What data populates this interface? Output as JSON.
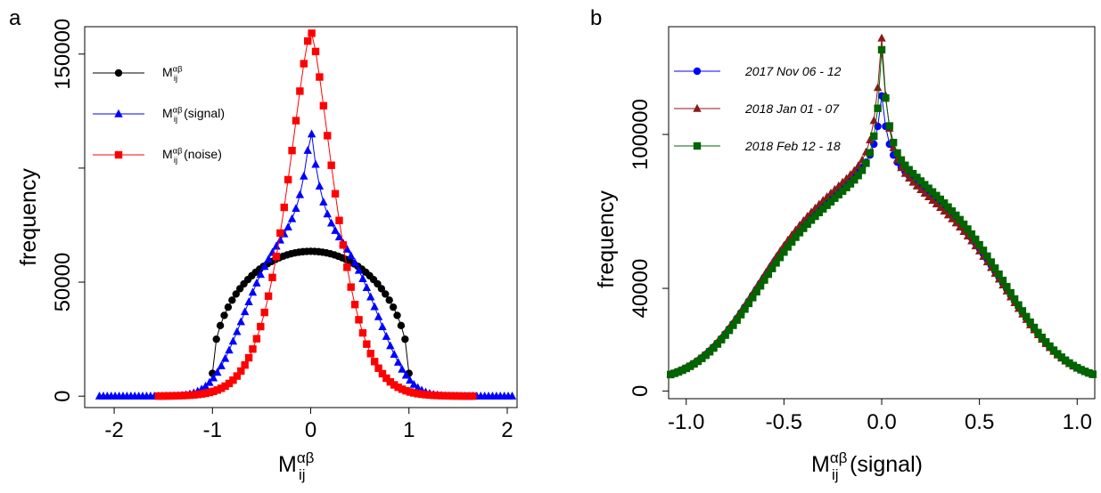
{
  "chart_data": [
    {
      "panel": "a",
      "type": "line",
      "xlabel": "M",
      "xlabel_sub": "ij",
      "xlabel_sup": "αβ",
      "ylabel": "frequency",
      "xlim": [
        -2.3,
        2.1
      ],
      "ylim": [
        -5000,
        162000
      ],
      "xticks": [
        -2,
        -1,
        0,
        1,
        2
      ],
      "xtick_labels": [
        "-2",
        "-1",
        "0",
        "1",
        "2"
      ],
      "yticks": [
        0,
        50000,
        100000,
        150000
      ],
      "ytick_labels": [
        "0",
        "50000",
        "",
        "150000"
      ],
      "legend_position": "top-left",
      "legend": [
        {
          "main": "M",
          "sub": "ij",
          "sup": "αβ",
          "suffix": ""
        },
        {
          "main": "M",
          "sub": "ij",
          "sup": "αβ",
          "suffix": "(signal)"
        },
        {
          "main": "M",
          "sub": "ij",
          "sup": "αβ",
          "suffix": "(noise)"
        }
      ],
      "series": [
        {
          "color": "#000000",
          "marker": "circle",
          "shape": "semicircle",
          "range": [
            -1.0,
            1.0
          ],
          "peak": 63500,
          "edge": 10000,
          "step": 0.04
        },
        {
          "color": "#0000ff",
          "marker": "triangle",
          "shape": "signal",
          "range": [
            -2.15,
            2.05
          ],
          "peak": 119000,
          "step": 0.04
        },
        {
          "color": "#ff0000",
          "marker": "square",
          "shape": "noise",
          "range": [
            -1.55,
            1.65
          ],
          "peak": 160000,
          "step": 0.04
        }
      ]
    },
    {
      "panel": "b",
      "type": "line",
      "xlabel": "M",
      "xlabel_sub": "ij",
      "xlabel_sup": "αβ",
      "xlabel_suffix": "(signal)",
      "ylabel": "frequency",
      "xlim": [
        -1.09,
        1.09
      ],
      "ylim": [
        -3000,
        142000
      ],
      "xticks": [
        -1.0,
        -0.5,
        0.0,
        0.5,
        1.0
      ],
      "xtick_labels": [
        "-1.0",
        "-0.5",
        "0.0",
        "0.5",
        "1.0"
      ],
      "yticks": [
        0,
        40000,
        100000
      ],
      "ytick_labels": [
        "0",
        "40000",
        "100000"
      ],
      "legend_position": "top-left",
      "legend": [
        "2017 Nov 06 - 12",
        "2018 Jan 01 - 07",
        "2018 Feb 12 - 18"
      ],
      "series": [
        {
          "name": "2017 Nov 06 - 12",
          "color": "#0000ff",
          "marker": "circle",
          "peak": 115000,
          "asym": 0,
          "step": 0.02
        },
        {
          "name": "2018 Jan 01 - 07",
          "color": "#8b1a1a",
          "marker": "triangle",
          "peak": 139000,
          "asym": -3000,
          "step": 0.02
        },
        {
          "name": "2018 Feb 12 - 18",
          "color": "#006400",
          "marker": "square",
          "peak": 131000,
          "asym": 4000,
          "step": 0.02
        }
      ]
    }
  ],
  "panels": {
    "a": "a",
    "b": "b"
  }
}
